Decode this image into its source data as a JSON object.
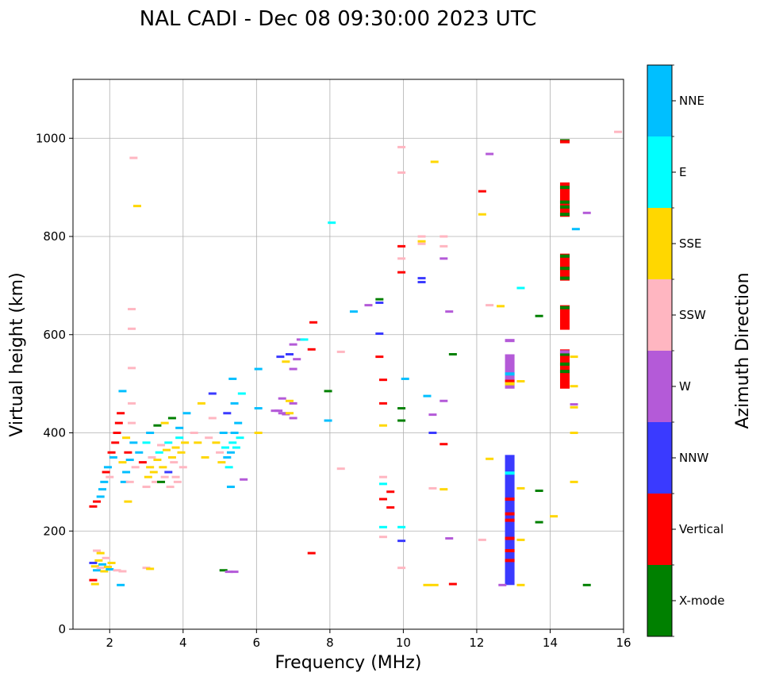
{
  "chart_data": {
    "type": "scatter",
    "title": "NAL CADI - Dec 08 09:30:00 2023 UTC",
    "xlabel": "Frequency (MHz)",
    "ylabel": "Virtual height (km)",
    "xlim": [
      1,
      16
    ],
    "ylim": [
      0,
      1120
    ],
    "xticks": [
      "2",
      "4",
      "6",
      "8",
      "10",
      "12",
      "14",
      "16"
    ],
    "yticks": [
      "0",
      "200",
      "400",
      "600",
      "800",
      "1000"
    ],
    "grid": true,
    "colorbar": {
      "label": "Azimuth Direction",
      "categories": [
        {
          "name": "X-mode",
          "color": "#008000"
        },
        {
          "name": "Vertical",
          "color": "#ff0000"
        },
        {
          "name": "NNW",
          "color": "#3a3aff"
        },
        {
          "name": "W",
          "color": "#b45ad8"
        },
        {
          "name": "SSW",
          "color": "#ffb6c1"
        },
        {
          "name": "SSE",
          "color": "#ffd700"
        },
        {
          "name": "E",
          "color": "#00ffff"
        },
        {
          "name": "NNE",
          "color": "#00bfff"
        }
      ]
    },
    "points": [
      {
        "f": 1.55,
        "h": 135,
        "c": "NNW"
      },
      {
        "f": 1.6,
        "h": 128,
        "c": "SSE"
      },
      {
        "f": 1.65,
        "h": 120,
        "c": "NNE"
      },
      {
        "f": 1.7,
        "h": 140,
        "c": "SSE"
      },
      {
        "f": 1.75,
        "h": 125,
        "c": "SSW"
      },
      {
        "f": 1.8,
        "h": 132,
        "c": "NNE"
      },
      {
        "f": 1.85,
        "h": 118,
        "c": "SSE"
      },
      {
        "f": 1.9,
        "h": 145,
        "c": "SSW"
      },
      {
        "f": 1.95,
        "h": 127,
        "c": "SSE"
      },
      {
        "f": 2.0,
        "h": 122,
        "c": "NNE"
      },
      {
        "f": 1.55,
        "h": 100,
        "c": "Vertical"
      },
      {
        "f": 1.65,
        "h": 160,
        "c": "SSW"
      },
      {
        "f": 1.75,
        "h": 155,
        "c": "SSE"
      },
      {
        "f": 2.05,
        "h": 135,
        "c": "SSE"
      },
      {
        "f": 2.2,
        "h": 120,
        "c": "SSW"
      },
      {
        "f": 2.3,
        "h": 90,
        "c": "NNE"
      },
      {
        "f": 2.35,
        "h": 118,
        "c": "SSW"
      },
      {
        "f": 1.6,
        "h": 92,
        "c": "SSE"
      },
      {
        "f": 1.55,
        "h": 250,
        "c": "Vertical"
      },
      {
        "f": 1.65,
        "h": 260,
        "c": "Vertical"
      },
      {
        "f": 1.75,
        "h": 270,
        "c": "NNE"
      },
      {
        "f": 1.8,
        "h": 285,
        "c": "NNE"
      },
      {
        "f": 1.85,
        "h": 300,
        "c": "NNE"
      },
      {
        "f": 1.9,
        "h": 320,
        "c": "Vertical"
      },
      {
        "f": 1.95,
        "h": 330,
        "c": "NNE"
      },
      {
        "f": 2.0,
        "h": 310,
        "c": "SSW"
      },
      {
        "f": 2.05,
        "h": 360,
        "c": "Vertical"
      },
      {
        "f": 2.1,
        "h": 350,
        "c": "NNE"
      },
      {
        "f": 2.15,
        "h": 380,
        "c": "Vertical"
      },
      {
        "f": 2.2,
        "h": 400,
        "c": "Vertical"
      },
      {
        "f": 2.25,
        "h": 420,
        "c": "Vertical"
      },
      {
        "f": 2.3,
        "h": 440,
        "c": "Vertical"
      },
      {
        "f": 2.35,
        "h": 485,
        "c": "NNE"
      },
      {
        "f": 2.4,
        "h": 300,
        "c": "NNE"
      },
      {
        "f": 2.45,
        "h": 320,
        "c": "NNE"
      },
      {
        "f": 2.5,
        "h": 360,
        "c": "Vertical"
      },
      {
        "f": 2.55,
        "h": 345,
        "c": "NNE"
      },
      {
        "f": 2.6,
        "h": 420,
        "c": "SSW"
      },
      {
        "f": 2.65,
        "h": 380,
        "c": "NNE"
      },
      {
        "f": 2.35,
        "h": 340,
        "c": "SSE"
      },
      {
        "f": 2.45,
        "h": 390,
        "c": "SSE"
      },
      {
        "f": 2.55,
        "h": 300,
        "c": "SSW"
      },
      {
        "f": 2.6,
        "h": 460,
        "c": "SSW"
      },
      {
        "f": 2.5,
        "h": 260,
        "c": "SSE"
      },
      {
        "f": 2.7,
        "h": 330,
        "c": "SSW"
      },
      {
        "f": 2.8,
        "h": 360,
        "c": "NNE"
      },
      {
        "f": 2.9,
        "h": 340,
        "c": "Vertical"
      },
      {
        "f": 3.0,
        "h": 380,
        "c": "E"
      },
      {
        "f": 3.0,
        "h": 290,
        "c": "SSW"
      },
      {
        "f": 3.05,
        "h": 310,
        "c": "SSE"
      },
      {
        "f": 3.1,
        "h": 330,
        "c": "SSE"
      },
      {
        "f": 3.15,
        "h": 350,
        "c": "SSW"
      },
      {
        "f": 3.2,
        "h": 320,
        "c": "SSE"
      },
      {
        "f": 3.25,
        "h": 300,
        "c": "SSW"
      },
      {
        "f": 3.3,
        "h": 345,
        "c": "SSE"
      },
      {
        "f": 3.35,
        "h": 360,
        "c": "E"
      },
      {
        "f": 3.4,
        "h": 375,
        "c": "SSW"
      },
      {
        "f": 3.45,
        "h": 330,
        "c": "SSE"
      },
      {
        "f": 3.5,
        "h": 310,
        "c": "SSW"
      },
      {
        "f": 3.55,
        "h": 365,
        "c": "SSE"
      },
      {
        "f": 3.6,
        "h": 380,
        "c": "E"
      },
      {
        "f": 3.65,
        "h": 290,
        "c": "SSW"
      },
      {
        "f": 3.7,
        "h": 350,
        "c": "SSE"
      },
      {
        "f": 3.75,
        "h": 340,
        "c": "SSW"
      },
      {
        "f": 3.8,
        "h": 370,
        "c": "SSE"
      },
      {
        "f": 3.85,
        "h": 300,
        "c": "SSW"
      },
      {
        "f": 3.9,
        "h": 390,
        "c": "E"
      },
      {
        "f": 3.95,
        "h": 360,
        "c": "SSE"
      },
      {
        "f": 4.0,
        "h": 330,
        "c": "SSW"
      },
      {
        "f": 4.05,
        "h": 380,
        "c": "SSE"
      },
      {
        "f": 3.1,
        "h": 400,
        "c": "NNE"
      },
      {
        "f": 3.3,
        "h": 415,
        "c": "X-mode"
      },
      {
        "f": 3.5,
        "h": 420,
        "c": "SSE"
      },
      {
        "f": 3.7,
        "h": 430,
        "c": "X-mode"
      },
      {
        "f": 3.9,
        "h": 410,
        "c": "NNE"
      },
      {
        "f": 3.4,
        "h": 300,
        "c": "X-mode"
      },
      {
        "f": 3.6,
        "h": 320,
        "c": "NNW"
      },
      {
        "f": 3.8,
        "h": 310,
        "c": "SSW"
      },
      {
        "f": 4.1,
        "h": 440,
        "c": "NNE"
      },
      {
        "f": 4.3,
        "h": 400,
        "c": "SSW"
      },
      {
        "f": 4.4,
        "h": 380,
        "c": "SSE"
      },
      {
        "f": 4.5,
        "h": 460,
        "c": "SSE"
      },
      {
        "f": 4.6,
        "h": 350,
        "c": "SSE"
      },
      {
        "f": 4.7,
        "h": 390,
        "c": "SSW"
      },
      {
        "f": 4.8,
        "h": 430,
        "c": "SSW"
      },
      {
        "f": 4.9,
        "h": 380,
        "c": "SSE"
      },
      {
        "f": 5.0,
        "h": 360,
        "c": "SSW"
      },
      {
        "f": 5.05,
        "h": 340,
        "c": "SSE"
      },
      {
        "f": 5.1,
        "h": 400,
        "c": "NNE"
      },
      {
        "f": 5.15,
        "h": 370,
        "c": "E"
      },
      {
        "f": 5.2,
        "h": 350,
        "c": "NNE"
      },
      {
        "f": 5.25,
        "h": 330,
        "c": "E"
      },
      {
        "f": 5.3,
        "h": 360,
        "c": "NNE"
      },
      {
        "f": 5.35,
        "h": 380,
        "c": "E"
      },
      {
        "f": 5.4,
        "h": 400,
        "c": "NNE"
      },
      {
        "f": 5.45,
        "h": 370,
        "c": "E"
      },
      {
        "f": 5.5,
        "h": 420,
        "c": "NNE"
      },
      {
        "f": 5.55,
        "h": 390,
        "c": "E"
      },
      {
        "f": 5.6,
        "h": 480,
        "c": "E"
      },
      {
        "f": 5.2,
        "h": 440,
        "c": "NNW"
      },
      {
        "f": 5.4,
        "h": 460,
        "c": "NNE"
      },
      {
        "f": 4.8,
        "h": 480,
        "c": "NNW"
      },
      {
        "f": 5.3,
        "h": 290,
        "c": "NNE"
      },
      {
        "f": 5.35,
        "h": 510,
        "c": "NNE"
      },
      {
        "f": 5.65,
        "h": 305,
        "c": "W"
      },
      {
        "f": 5.1,
        "h": 120,
        "c": "X-mode"
      },
      {
        "f": 5.25,
        "h": 117,
        "c": "W"
      },
      {
        "f": 5.4,
        "h": 117,
        "c": "W"
      },
      {
        "f": 3.0,
        "h": 125,
        "c": "SSW"
      },
      {
        "f": 3.1,
        "h": 123,
        "c": "SSE"
      },
      {
        "f": 2.65,
        "h": 960,
        "c": "SSW"
      },
      {
        "f": 2.75,
        "h": 862,
        "c": "SSE"
      },
      {
        "f": 2.6,
        "h": 652,
        "c": "SSW"
      },
      {
        "f": 2.6,
        "h": 612,
        "c": "SSW"
      },
      {
        "f": 2.6,
        "h": 532,
        "c": "SSW"
      },
      {
        "f": 6.05,
        "h": 400,
        "c": "SSE"
      },
      {
        "f": 6.05,
        "h": 450,
        "c": "NNE"
      },
      {
        "f": 6.05,
        "h": 530,
        "c": "NNE"
      },
      {
        "f": 6.5,
        "h": 445,
        "c": "W"
      },
      {
        "f": 6.6,
        "h": 445,
        "c": "W"
      },
      {
        "f": 6.7,
        "h": 440,
        "c": "W"
      },
      {
        "f": 6.8,
        "h": 438,
        "c": "W"
      },
      {
        "f": 6.9,
        "h": 440,
        "c": "SSE"
      },
      {
        "f": 7.0,
        "h": 430,
        "c": "W"
      },
      {
        "f": 6.7,
        "h": 470,
        "c": "W"
      },
      {
        "f": 6.9,
        "h": 465,
        "c": "SSE"
      },
      {
        "f": 7.0,
        "h": 460,
        "c": "W"
      },
      {
        "f": 6.65,
        "h": 555,
        "c": "NNW"
      },
      {
        "f": 6.8,
        "h": 545,
        "c": "SSE"
      },
      {
        "f": 6.9,
        "h": 560,
        "c": "NNW"
      },
      {
        "f": 7.0,
        "h": 580,
        "c": "W"
      },
      {
        "f": 7.1,
        "h": 550,
        "c": "W"
      },
      {
        "f": 7.2,
        "h": 590,
        "c": "W"
      },
      {
        "f": 7.0,
        "h": 530,
        "c": "W"
      },
      {
        "f": 7.5,
        "h": 570,
        "c": "Vertical"
      },
      {
        "f": 7.55,
        "h": 625,
        "c": "Vertical"
      },
      {
        "f": 7.3,
        "h": 590,
        "c": "E"
      },
      {
        "f": 7.5,
        "h": 155,
        "c": "Vertical"
      },
      {
        "f": 8.05,
        "h": 828,
        "c": "E"
      },
      {
        "f": 8.3,
        "h": 565,
        "c": "SSW"
      },
      {
        "f": 8.3,
        "h": 327,
        "c": "SSW"
      },
      {
        "f": 7.95,
        "h": 485,
        "c": "X-mode"
      },
      {
        "f": 7.95,
        "h": 425,
        "c": "NNE"
      },
      {
        "f": 8.65,
        "h": 647,
        "c": "NNE"
      },
      {
        "f": 9.05,
        "h": 660,
        "c": "W"
      },
      {
        "f": 9.35,
        "h": 672,
        "c": "X-mode"
      },
      {
        "f": 9.35,
        "h": 665,
        "c": "NNW"
      },
      {
        "f": 9.35,
        "h": 602,
        "c": "NNW"
      },
      {
        "f": 9.35,
        "h": 555,
        "c": "Vertical"
      },
      {
        "f": 9.45,
        "h": 508,
        "c": "Vertical"
      },
      {
        "f": 9.45,
        "h": 460,
        "c": "Vertical"
      },
      {
        "f": 9.45,
        "h": 415,
        "c": "SSE"
      },
      {
        "f": 9.45,
        "h": 310,
        "c": "SSW"
      },
      {
        "f": 9.45,
        "h": 296,
        "c": "E"
      },
      {
        "f": 9.45,
        "h": 265,
        "c": "Vertical"
      },
      {
        "f": 9.45,
        "h": 208,
        "c": "E"
      },
      {
        "f": 9.45,
        "h": 188,
        "c": "SSW"
      },
      {
        "f": 9.65,
        "h": 280,
        "c": "Vertical"
      },
      {
        "f": 9.65,
        "h": 248,
        "c": "Vertical"
      },
      {
        "f": 9.95,
        "h": 982,
        "c": "SSW"
      },
      {
        "f": 9.95,
        "h": 930,
        "c": "SSW"
      },
      {
        "f": 9.95,
        "h": 780,
        "c": "Vertical"
      },
      {
        "f": 9.95,
        "h": 755,
        "c": "SSW"
      },
      {
        "f": 9.95,
        "h": 727,
        "c": "Vertical"
      },
      {
        "f": 10.05,
        "h": 510,
        "c": "NNE"
      },
      {
        "f": 9.95,
        "h": 450,
        "c": "X-mode"
      },
      {
        "f": 9.95,
        "h": 425,
        "c": "X-mode"
      },
      {
        "f": 9.95,
        "h": 208,
        "c": "E"
      },
      {
        "f": 9.95,
        "h": 180,
        "c": "NNW"
      },
      {
        "f": 9.95,
        "h": 125,
        "c": "SSW"
      },
      {
        "f": 10.5,
        "h": 800,
        "c": "SSW"
      },
      {
        "f": 10.5,
        "h": 790,
        "c": "SSE"
      },
      {
        "f": 10.5,
        "h": 785,
        "c": "SSW"
      },
      {
        "f": 10.5,
        "h": 715,
        "c": "NNW"
      },
      {
        "f": 10.5,
        "h": 707,
        "c": "NNW"
      },
      {
        "f": 10.65,
        "h": 475,
        "c": "NNE"
      },
      {
        "f": 10.8,
        "h": 437,
        "c": "W"
      },
      {
        "f": 10.8,
        "h": 400,
        "c": "NNW"
      },
      {
        "f": 10.8,
        "h": 287,
        "c": "SSW"
      },
      {
        "f": 10.85,
        "h": 952,
        "c": "SSE"
      },
      {
        "f": 10.65,
        "h": 90,
        "c": "SSE"
      },
      {
        "f": 10.85,
        "h": 90,
        "c": "SSE"
      },
      {
        "f": 11.1,
        "h": 800,
        "c": "SSW"
      },
      {
        "f": 11.1,
        "h": 755,
        "c": "W"
      },
      {
        "f": 11.1,
        "h": 780,
        "c": "SSW"
      },
      {
        "f": 11.1,
        "h": 465,
        "c": "W"
      },
      {
        "f": 11.1,
        "h": 377,
        "c": "Vertical"
      },
      {
        "f": 11.1,
        "h": 285,
        "c": "SSE"
      },
      {
        "f": 11.25,
        "h": 647,
        "c": "W"
      },
      {
        "f": 11.35,
        "h": 560,
        "c": "X-mode"
      },
      {
        "f": 11.25,
        "h": 185,
        "c": "W"
      },
      {
        "f": 11.35,
        "h": 92,
        "c": "Vertical"
      },
      {
        "f": 12.15,
        "h": 892,
        "c": "Vertical"
      },
      {
        "f": 12.15,
        "h": 845,
        "c": "SSE"
      },
      {
        "f": 12.15,
        "h": 182,
        "c": "SSW"
      },
      {
        "f": 12.35,
        "h": 968,
        "c": "W"
      },
      {
        "f": 12.35,
        "h": 660,
        "c": "SSW"
      },
      {
        "f": 12.35,
        "h": 347,
        "c": "SSE"
      },
      {
        "f": 12.65,
        "h": 658,
        "c": "SSE"
      },
      {
        "f": 12.7,
        "h": 90,
        "c": "W"
      },
      {
        "f": 13.2,
        "h": 695,
        "c": "E"
      },
      {
        "f": 13.2,
        "h": 505,
        "c": "SSE"
      },
      {
        "f": 13.2,
        "h": 287,
        "c": "SSE"
      },
      {
        "f": 13.2,
        "h": 182,
        "c": "SSE"
      },
      {
        "f": 13.2,
        "h": 90,
        "c": "SSE"
      },
      {
        "f": 13.7,
        "h": 638,
        "c": "X-mode"
      },
      {
        "f": 13.7,
        "h": 282,
        "c": "X-mode"
      },
      {
        "f": 13.7,
        "h": 218,
        "c": "X-mode"
      },
      {
        "f": 14.1,
        "h": 230,
        "c": "SSE"
      },
      {
        "f": 14.65,
        "h": 555,
        "c": "SSE"
      },
      {
        "f": 14.65,
        "h": 495,
        "c": "SSE"
      },
      {
        "f": 14.65,
        "h": 458,
        "c": "W"
      },
      {
        "f": 14.65,
        "h": 452,
        "c": "SSE"
      },
      {
        "f": 14.65,
        "h": 400,
        "c": "SSE"
      },
      {
        "f": 14.65,
        "h": 300,
        "c": "SSE"
      },
      {
        "f": 14.7,
        "h": 815,
        "c": "NNE"
      },
      {
        "f": 15.0,
        "h": 848,
        "c": "W"
      },
      {
        "f": 15.0,
        "h": 90,
        "c": "X-mode"
      },
      {
        "f": 15.85,
        "h": 1013,
        "c": "SSW"
      }
    ],
    "columns": [
      {
        "f": 12.9,
        "h0": 90,
        "h1": 355,
        "c": "NNW"
      },
      {
        "f": 12.9,
        "h0": 490,
        "h1": 560,
        "c": "W"
      },
      {
        "f": 14.4,
        "h0": 490,
        "h1": 570,
        "c": "Vertical"
      },
      {
        "f": 14.4,
        "h0": 610,
        "h1": 660,
        "c": "Vertical"
      },
      {
        "f": 14.4,
        "h0": 710,
        "h1": 765,
        "c": "Vertical"
      },
      {
        "f": 14.4,
        "h0": 840,
        "h1": 910,
        "c": "Vertical"
      }
    ],
    "column_marks": [
      {
        "f": 12.9,
        "h": 588,
        "c": "W"
      },
      {
        "f": 12.9,
        "h": 520,
        "c": "NNE"
      },
      {
        "f": 12.9,
        "h": 505,
        "c": "Vertical"
      },
      {
        "f": 12.9,
        "h": 500,
        "c": "SSE"
      },
      {
        "f": 12.9,
        "h": 318,
        "c": "E"
      },
      {
        "f": 12.9,
        "h": 265,
        "c": "Vertical"
      },
      {
        "f": 12.9,
        "h": 235,
        "c": "Vertical"
      },
      {
        "f": 12.9,
        "h": 222,
        "c": "Vertical"
      },
      {
        "f": 12.9,
        "h": 185,
        "c": "Vertical"
      },
      {
        "f": 12.9,
        "h": 160,
        "c": "Vertical"
      },
      {
        "f": 12.9,
        "h": 140,
        "c": "Vertical"
      },
      {
        "f": 14.4,
        "h": 995,
        "c": "X-mode"
      },
      {
        "f": 14.4,
        "h": 993,
        "c": "Vertical"
      },
      {
        "f": 14.4,
        "h": 900,
        "c": "X-mode"
      },
      {
        "f": 14.4,
        "h": 870,
        "c": "X-mode"
      },
      {
        "f": 14.4,
        "h": 860,
        "c": "X-mode"
      },
      {
        "f": 14.4,
        "h": 845,
        "c": "X-mode"
      },
      {
        "f": 14.4,
        "h": 760,
        "c": "X-mode"
      },
      {
        "f": 14.4,
        "h": 735,
        "c": "X-mode"
      },
      {
        "f": 14.4,
        "h": 715,
        "c": "X-mode"
      },
      {
        "f": 14.4,
        "h": 655,
        "c": "X-mode"
      },
      {
        "f": 14.4,
        "h": 560,
        "c": "X-mode"
      },
      {
        "f": 14.4,
        "h": 540,
        "c": "X-mode"
      },
      {
        "f": 14.4,
        "h": 525,
        "c": "X-mode"
      },
      {
        "f": 14.4,
        "h": 565,
        "c": "W"
      }
    ]
  }
}
